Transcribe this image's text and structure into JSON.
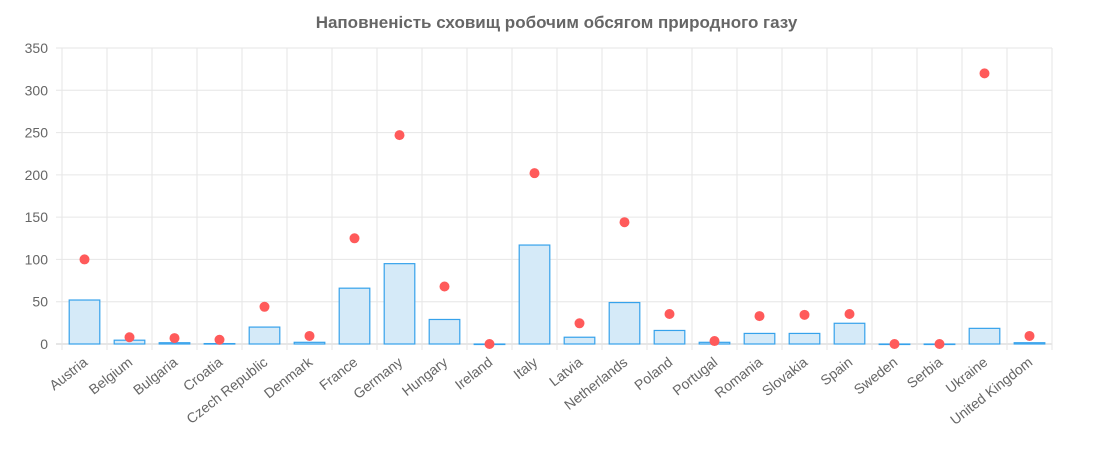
{
  "chart_data": {
    "type": "bar",
    "title": "Наповненість сховищ робочим обсягом природного газу",
    "categories": [
      "Austria",
      "Belgium",
      "Bulgaria",
      "Croatia",
      "Czech Republic",
      "Denmark",
      "France",
      "Germany",
      "Hungary",
      "Ireland",
      "Italy",
      "Latvia",
      "Netherlands",
      "Poland",
      "Portugal",
      "Romania",
      "Slovakia",
      "Spain",
      "Sweden",
      "Serbia",
      "Ukraine",
      "United Kingdom"
    ],
    "series": [
      {
        "name": "bars",
        "type": "bar",
        "color": "#36a2eb",
        "fill": "#d5eaf8",
        "values": [
          52,
          4.5,
          1.5,
          0.5,
          20,
          2,
          66,
          95,
          29,
          0,
          117,
          8,
          49,
          16,
          2,
          12.5,
          12.5,
          24.5,
          0,
          0,
          18.5,
          1.5
        ]
      },
      {
        "name": "points",
        "type": "scatter",
        "color": "#ff5a5a",
        "values": [
          100,
          8,
          7,
          5,
          44,
          9.5,
          125,
          247,
          68,
          0,
          202,
          24.5,
          144,
          35.5,
          3.5,
          33,
          34.5,
          35.5,
          0,
          0,
          320,
          9.5
        ]
      }
    ],
    "ylim": [
      0,
      350
    ],
    "yticks": [
      0,
      50,
      100,
      150,
      200,
      250,
      300,
      350
    ],
    "grid": true,
    "xlabel": "",
    "ylabel": ""
  }
}
